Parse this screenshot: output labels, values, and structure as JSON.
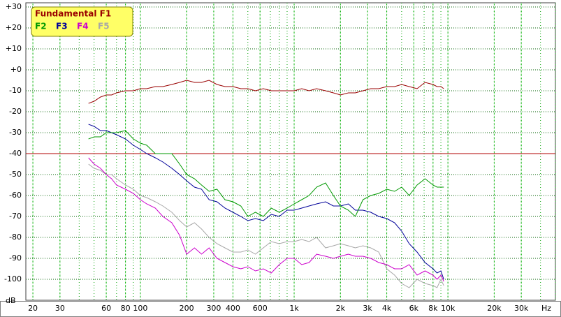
{
  "chart_data": {
    "type": "line",
    "log_x": true,
    "grid": true,
    "x_label": "Hz",
    "y_label": "dB",
    "xlim": [
      18,
      50000
    ],
    "ylim": [
      -110,
      32
    ],
    "xticks": [
      20,
      30,
      60,
      80,
      100,
      200,
      300,
      400,
      600,
      {
        "value": 1000,
        "label": "1k"
      },
      {
        "value": 2000,
        "label": "2k"
      },
      {
        "value": 3000,
        "label": "3k"
      },
      {
        "value": 4000,
        "label": "4k"
      },
      {
        "value": 6000,
        "label": "6k"
      },
      {
        "value": 8000,
        "label": "8k"
      },
      {
        "value": 10000,
        "label": "10k"
      },
      {
        "value": 20000,
        "label": "20k"
      },
      {
        "value": 30000,
        "label": "30k"
      }
    ],
    "yticks": [
      {
        "value": 30,
        "label": "+30"
      },
      {
        "value": 20,
        "label": "+20"
      },
      {
        "value": 10,
        "label": "+10"
      },
      {
        "value": 0,
        "label": "+0"
      },
      -10,
      -20,
      -30,
      -40,
      -50,
      -60,
      -70,
      -80,
      -90,
      -100
    ],
    "reference_line": -40,
    "reference_color": "#b00000",
    "x": [
      46,
      50,
      55,
      60,
      65,
      70,
      80,
      90,
      100,
      110,
      125,
      140,
      160,
      180,
      200,
      225,
      250,
      280,
      315,
      355,
      400,
      450,
      500,
      560,
      630,
      710,
      800,
      900,
      1000,
      1120,
      1250,
      1400,
      1600,
      1800,
      2000,
      2250,
      2500,
      2800,
      3150,
      3550,
      4000,
      4500,
      5000,
      5600,
      6300,
      7100,
      8000,
      8500,
      9000,
      9400
    ],
    "series": [
      {
        "name": "Fundamental F1",
        "color": "#990000",
        "values": [
          -16,
          -15,
          -13,
          -12,
          -12,
          -11,
          -10,
          -10,
          -9,
          -9,
          -8,
          -8,
          -7,
          -6,
          -5,
          -6,
          -6,
          -5,
          -7,
          -8,
          -8,
          -9,
          -9,
          -10,
          -9,
          -10,
          -10,
          -10,
          -10,
          -9,
          -10,
          -9,
          -10,
          -11,
          -12,
          -11,
          -11,
          -10,
          -9,
          -9,
          -8,
          -8,
          -7,
          -8,
          -9,
          -6,
          -7,
          -8,
          -8,
          -9
        ]
      },
      {
        "name": "F2",
        "color": "#009900",
        "values": [
          -33,
          -32,
          -32,
          -30,
          -30,
          -30,
          -29,
          -33,
          -35,
          -36,
          -40,
          -40,
          -40,
          -45,
          -50,
          -52,
          -55,
          -58,
          -57,
          -62,
          -63,
          -65,
          -70,
          -68,
          -70,
          -66,
          -68,
          -66,
          -64,
          -62,
          -60,
          -56,
          -54,
          -60,
          -65,
          -67,
          -70,
          -62,
          -60,
          -59,
          -57,
          -58,
          -56,
          -60,
          -55,
          -52,
          -55,
          -56,
          -56,
          -56
        ]
      },
      {
        "name": "F3",
        "color": "#000099",
        "values": [
          -26,
          -27,
          -29,
          -29,
          -30,
          -31,
          -33,
          -36,
          -38,
          -40,
          -42,
          -44,
          -47,
          -50,
          -53,
          -56,
          -57,
          -62,
          -63,
          -66,
          -68,
          -70,
          -72,
          -71,
          -72,
          -69,
          -70,
          -67,
          -67,
          -66,
          -65,
          -64,
          -63,
          -65,
          -65,
          -64,
          -67,
          -67,
          -68,
          -70,
          -71,
          -73,
          -77,
          -83,
          -87,
          -92,
          -95,
          -97,
          -96,
          -100
        ]
      },
      {
        "name": "F4",
        "color": "#cc00cc",
        "values": [
          -42,
          -45,
          -47,
          -50,
          -52,
          -55,
          -57,
          -59,
          -62,
          -64,
          -66,
          -70,
          -73,
          -79,
          -88,
          -85,
          -88,
          -85,
          -90,
          -92,
          -94,
          -95,
          -94,
          -96,
          -95,
          -97,
          -93,
          -90,
          -90,
          -93,
          -92,
          -88,
          -89,
          -90,
          -89,
          -88,
          -89,
          -89,
          -90,
          -92,
          -93,
          -95,
          -95,
          -93,
          -98,
          -96,
          -98,
          -100,
          -98,
          -101
        ]
      },
      {
        "name": "F5",
        "color": "#a8a8a8",
        "values": [
          -45,
          -47,
          -48,
          -50,
          -50,
          -52,
          -55,
          -57,
          -60,
          -61,
          -63,
          -65,
          -68,
          -72,
          -75,
          -73,
          -76,
          -80,
          -83,
          -85,
          -87,
          -87,
          -86,
          -88,
          -85,
          -82,
          -83,
          -82,
          -82,
          -81,
          -82,
          -80,
          -85,
          -84,
          -83,
          -84,
          -85,
          -84,
          -85,
          -87,
          -95,
          -98,
          -102,
          -104,
          -100,
          -102,
          -103,
          -104,
          -100,
          -103
        ]
      }
    ]
  }
}
